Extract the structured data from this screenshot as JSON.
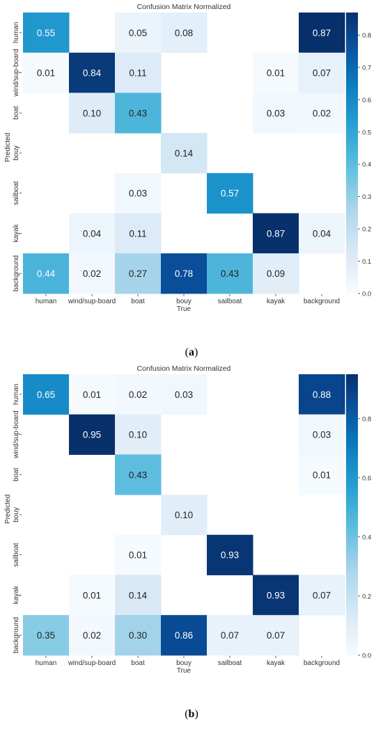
{
  "chart_data": [
    {
      "type": "heatmap",
      "panel_label": "a",
      "title": "Confusion Matrix Normalized",
      "xlabel": "True",
      "ylabel": "Predicted",
      "x_categories": [
        "human",
        "wind/sup-board",
        "boat",
        "bouy",
        "sailboat",
        "kayak",
        "background"
      ],
      "y_categories": [
        "human",
        "wind/sup-board",
        "boat",
        "bouy",
        "sailboat",
        "kayak",
        "background"
      ],
      "values": [
        [
          0.55,
          null,
          0.05,
          0.08,
          null,
          null,
          0.87
        ],
        [
          0.01,
          0.84,
          0.11,
          null,
          null,
          0.01,
          0.07
        ],
        [
          null,
          0.1,
          0.43,
          null,
          null,
          0.03,
          0.02
        ],
        [
          null,
          null,
          null,
          0.14,
          null,
          null,
          null
        ],
        [
          null,
          null,
          0.03,
          null,
          0.57,
          null,
          null
        ],
        [
          null,
          0.04,
          0.11,
          null,
          null,
          0.87,
          0.04
        ],
        [
          0.44,
          0.02,
          0.27,
          0.78,
          0.43,
          0.09,
          null
        ]
      ],
      "value_labels": [
        [
          "0.55",
          "",
          "0.05",
          "0.08",
          "",
          "",
          "0.87"
        ],
        [
          "0.01",
          "0.84",
          "0.11",
          "",
          "",
          "0.01",
          "0.07"
        ],
        [
          "",
          "0.10",
          "0.43",
          "",
          "",
          "0.03",
          "0.02"
        ],
        [
          "",
          "",
          "",
          "0.14",
          "",
          "",
          ""
        ],
        [
          "",
          "",
          "0.03",
          "",
          "0.57",
          "",
          ""
        ],
        [
          "",
          "0.04",
          "0.11",
          "",
          "",
          "0.87",
          "0.04"
        ],
        [
          "0.44",
          "0.02",
          "0.27",
          "0.78",
          "0.43",
          "0.09",
          ""
        ]
      ],
      "colorbar": {
        "range": [
          0,
          0.87
        ],
        "ticks": [
          0.0,
          0.1,
          0.2,
          0.3,
          0.4,
          0.5,
          0.6,
          0.7,
          0.8
        ],
        "tick_labels": [
          "0.0",
          "0.1",
          "0.2",
          "0.3",
          "0.4",
          "0.5",
          "0.6",
          "0.7",
          "0.8"
        ]
      },
      "colormap": "Blues"
    },
    {
      "type": "heatmap",
      "panel_label": "b",
      "title": "Confusion Matrix Normalized",
      "xlabel": "True",
      "ylabel": "Predicted",
      "x_categories": [
        "human",
        "wind/sup-board",
        "boat",
        "bouy",
        "sailboat",
        "kayak",
        "background"
      ],
      "y_categories": [
        "human",
        "wind/sup-board",
        "boat",
        "bouy",
        "sailboat",
        "kayak",
        "background"
      ],
      "values": [
        [
          0.65,
          0.01,
          0.02,
          0.03,
          null,
          null,
          0.88
        ],
        [
          null,
          0.95,
          0.1,
          null,
          null,
          null,
          0.03
        ],
        [
          null,
          null,
          0.43,
          null,
          null,
          null,
          0.01
        ],
        [
          null,
          null,
          null,
          0.1,
          null,
          null,
          null
        ],
        [
          null,
          null,
          0.01,
          null,
          0.93,
          null,
          null
        ],
        [
          null,
          0.01,
          0.14,
          null,
          null,
          0.93,
          0.07
        ],
        [
          0.35,
          0.02,
          0.3,
          0.86,
          0.07,
          0.07,
          null
        ]
      ],
      "value_labels": [
        [
          "0.65",
          "0.01",
          "0.02",
          "0.03",
          "",
          "",
          "0.88"
        ],
        [
          "",
          "0.95",
          "0.10",
          "",
          "",
          "",
          "0.03"
        ],
        [
          "",
          "",
          "0.43",
          "",
          "",
          "",
          "0.01"
        ],
        [
          "",
          "",
          "",
          "0.10",
          "",
          "",
          ""
        ],
        [
          "",
          "",
          "0.01",
          "",
          "0.93",
          "",
          ""
        ],
        [
          "",
          "0.01",
          "0.14",
          "",
          "",
          "0.93",
          "0.07"
        ],
        [
          "0.35",
          "0.02",
          "0.30",
          "0.86",
          "0.07",
          "0.07",
          ""
        ]
      ],
      "colorbar": {
        "range": [
          0,
          0.95
        ],
        "ticks": [
          0.0,
          0.2,
          0.4,
          0.6,
          0.8
        ],
        "tick_labels": [
          "0.0",
          "0.2",
          "0.4",
          "0.6",
          "0.8"
        ]
      },
      "colormap": "Blues"
    }
  ]
}
